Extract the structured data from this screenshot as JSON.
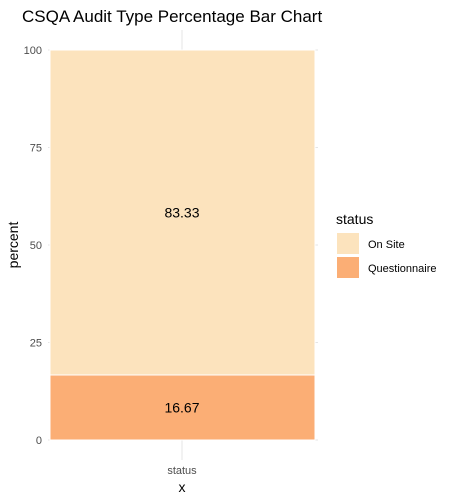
{
  "chart_data": {
    "type": "bar",
    "stacked": true,
    "title": "CSQA Audit Type Percentage Bar Chart",
    "xlabel": "x",
    "ylabel": "percent",
    "categories": [
      "status"
    ],
    "ylim": [
      0,
      100
    ],
    "yticks": [
      "0",
      "25",
      "50",
      "75",
      "100"
    ],
    "grid": true,
    "legend": {
      "title": "status",
      "position": "right",
      "entries": [
        "On Site",
        "Questionnaire"
      ]
    },
    "series": [
      {
        "name": "On Site",
        "values": [
          83.33
        ],
        "label": "83.33",
        "color": "#FCE3BD"
      },
      {
        "name": "Questionnaire",
        "values": [
          16.67
        ],
        "label": "16.67",
        "color": "#FBAE75"
      }
    ]
  }
}
